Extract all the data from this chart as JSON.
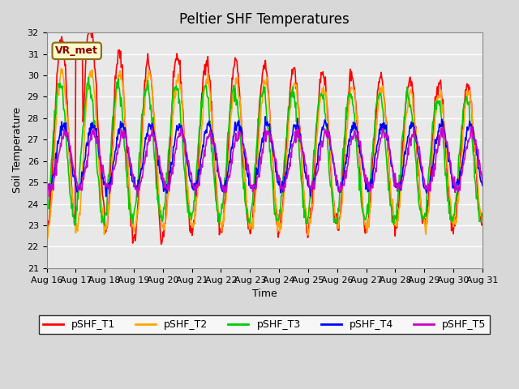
{
  "title": "Peltier SHF Temperatures",
  "xlabel": "Time",
  "ylabel": "Soil Temperature",
  "ylim": [
    21.0,
    32.0
  ],
  "yticks": [
    21.0,
    22.0,
    23.0,
    24.0,
    25.0,
    26.0,
    27.0,
    28.0,
    29.0,
    30.0,
    31.0,
    32.0
  ],
  "annotation_text": "VR_met",
  "colors": {
    "pSHF_T1": "#ff0000",
    "pSHF_T2": "#ffa500",
    "pSHF_T3": "#00cc00",
    "pSHF_T4": "#0000ff",
    "pSHF_T5": "#cc00cc"
  },
  "legend_labels": [
    "pSHF_T1",
    "pSHF_T2",
    "pSHF_T3",
    "pSHF_T4",
    "pSHF_T5"
  ],
  "x_tick_labels": [
    "Aug 16",
    "Aug 17",
    "Aug 18",
    "Aug 19",
    "Aug 20",
    "Aug 21",
    "Aug 22",
    "Aug 23",
    "Aug 24",
    "Aug 25",
    "Aug 26",
    "Aug 27",
    "Aug 28",
    "Aug 29",
    "Aug 30",
    "Aug 31"
  ],
  "n_days": 15,
  "points_per_day": 48,
  "day_start": 16
}
